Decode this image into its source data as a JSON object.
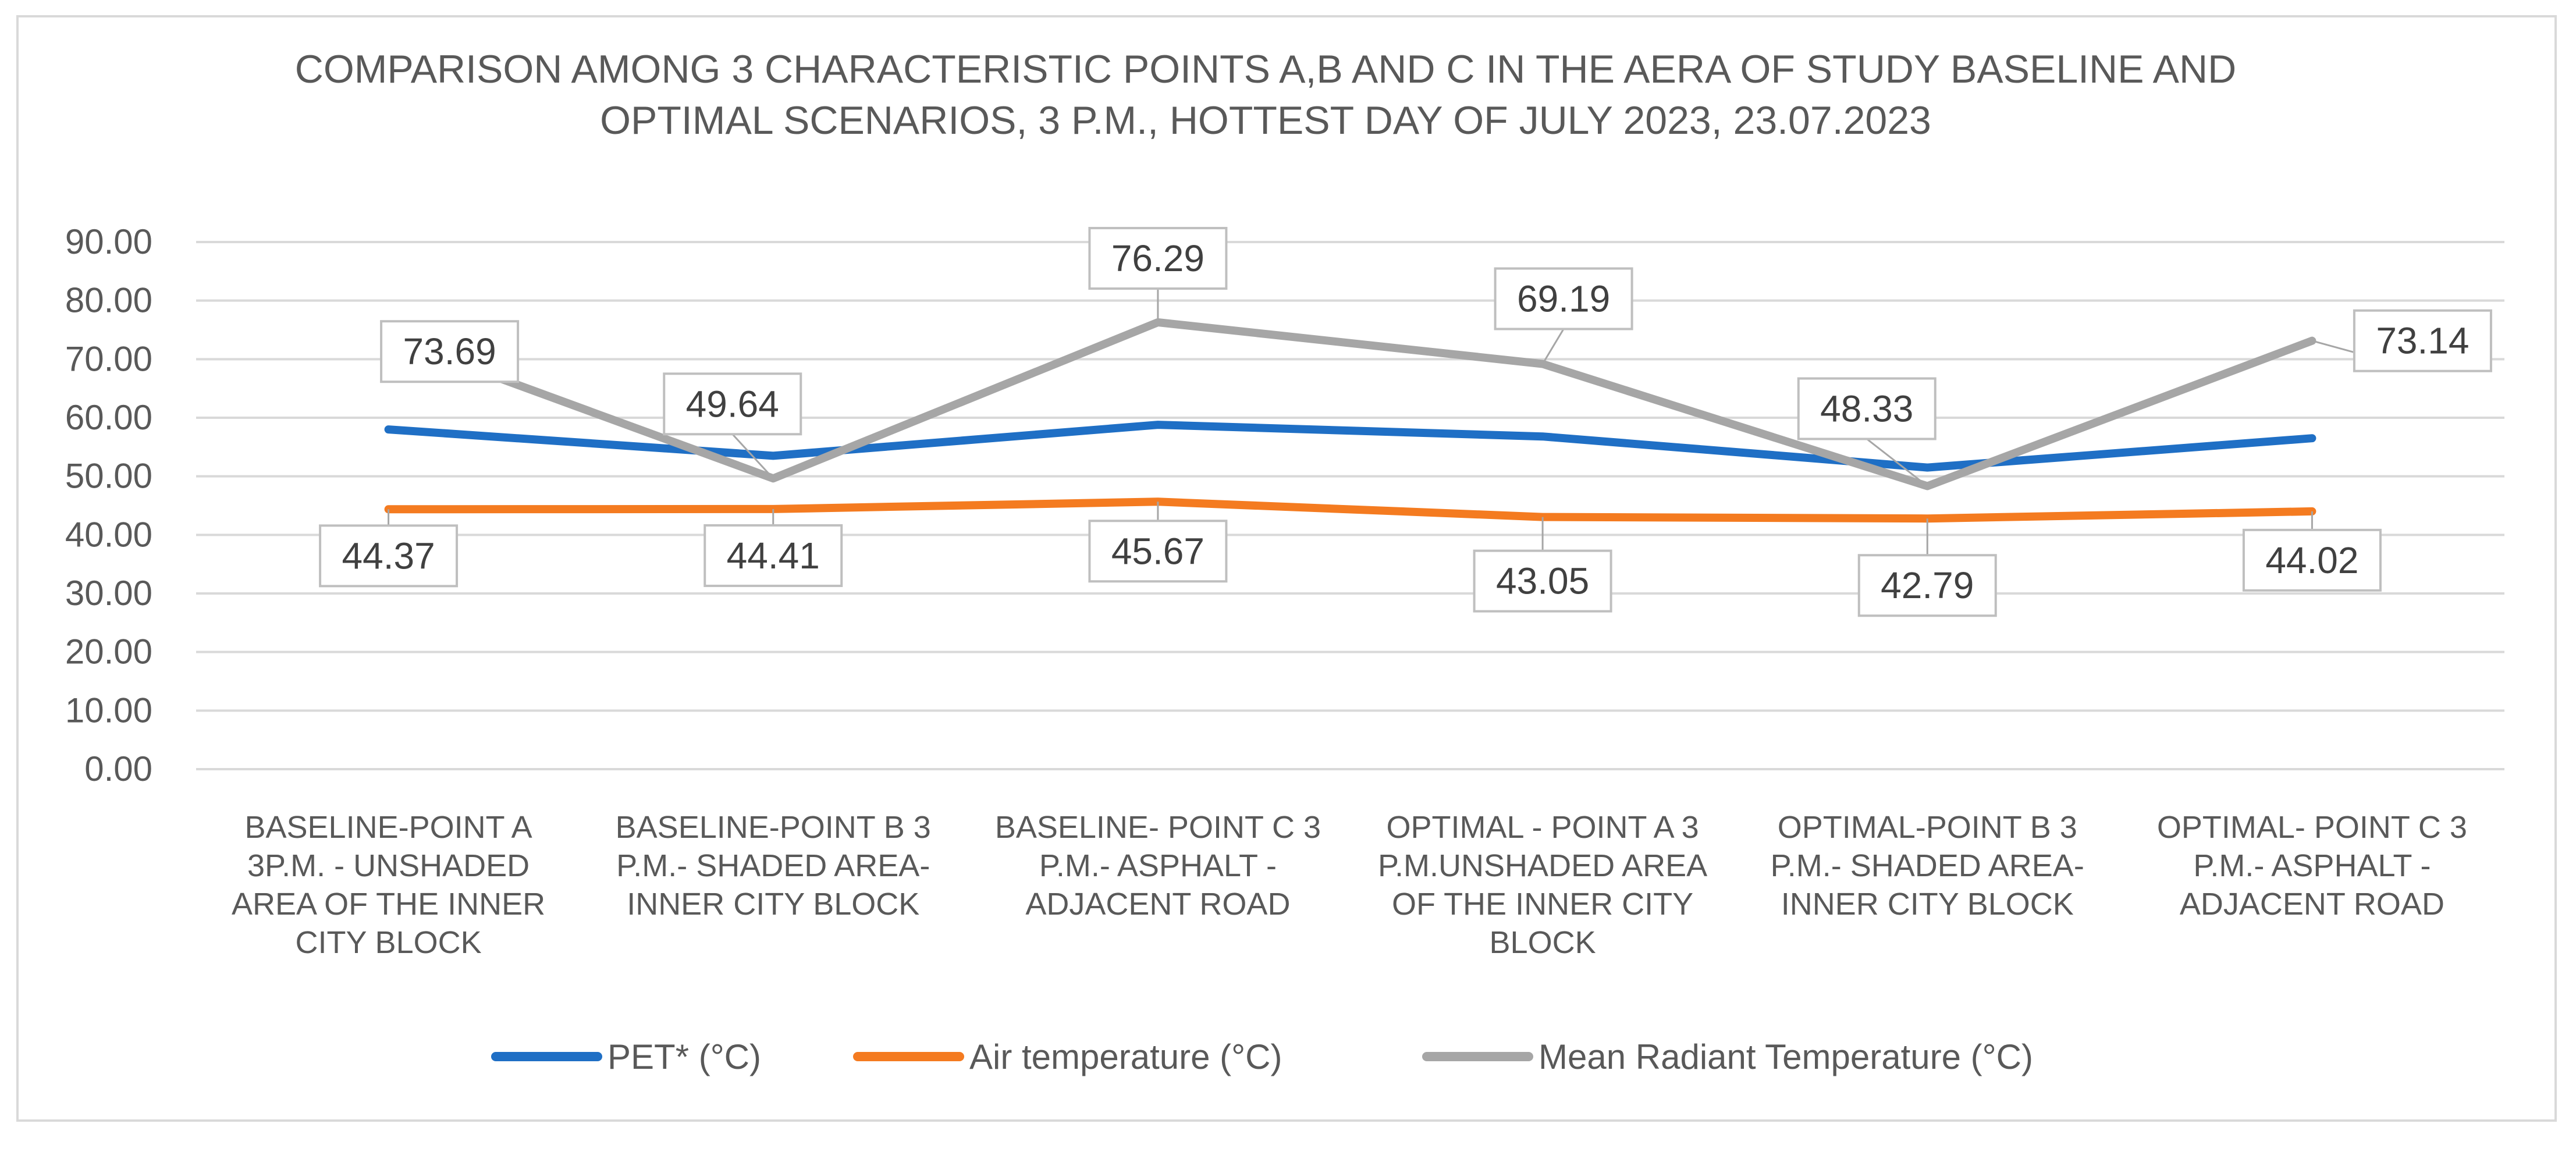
{
  "chart_data": {
    "type": "line",
    "title_lines": [
      "COMPARISON AMONG 3 CHARACTERISTIC POINTS A,B AND C IN THE AERA OF STUDY BASELINE AND",
      "OPTIMAL SCENARIOS, 3 P.M., HOTTEST DAY OF JULY 2023, 23.07.2023"
    ],
    "categories": [
      [
        "BASELINE-POINT A",
        "3P.M. - UNSHADED",
        "AREA OF THE INNER",
        "CITY BLOCK"
      ],
      [
        "BASELINE-POINT B 3",
        "P.M.- SHADED AREA-",
        "INNER CITY BLOCK"
      ],
      [
        "BASELINE- POINT C 3",
        "P.M.- ASPHALT -",
        "ADJACENT ROAD"
      ],
      [
        "OPTIMAL - POINT A  3",
        "P.M.UNSHADED AREA",
        "OF THE INNER CITY",
        "BLOCK"
      ],
      [
        "OPTIMAL-POINT B 3",
        "P.M.- SHADED AREA-",
        "INNER CITY BLOCK"
      ],
      [
        "OPTIMAL- POINT C 3",
        "P.M.- ASPHALT -",
        "ADJACENT ROAD"
      ]
    ],
    "ylim": [
      0,
      90
    ],
    "ystep": 10,
    "yticks": [
      "0.00",
      "10.00",
      "20.00",
      "30.00",
      "40.00",
      "50.00",
      "60.00",
      "70.00",
      "80.00",
      "90.00"
    ],
    "grid": true,
    "legend_position": "bottom",
    "series": [
      {
        "name": "PET*  (°C)",
        "color": "#1f6fc5",
        "values": [
          58.0,
          53.5,
          58.8,
          56.8,
          51.5,
          56.5
        ],
        "labels": []
      },
      {
        "name": "Air temperature  (°C)",
        "color": "#f47b20",
        "values": [
          44.37,
          44.41,
          45.67,
          43.05,
          42.79,
          44.02
        ],
        "labels": [
          "44.37",
          "44.41",
          "45.67",
          "43.05",
          "42.79",
          "44.02"
        ]
      },
      {
        "name": "Mean Radiant Temperature  (°C)",
        "color": "#a6a6a6",
        "values": [
          73.69,
          49.64,
          76.29,
          69.19,
          48.33,
          73.14
        ],
        "labels": [
          "73.69",
          "49.64",
          "76.29",
          "69.19",
          "48.33",
          "73.14"
        ]
      }
    ]
  }
}
